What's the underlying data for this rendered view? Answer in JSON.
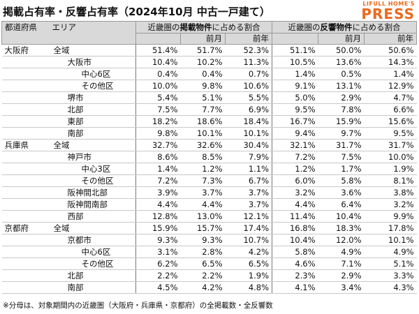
{
  "header": {
    "title": "掲載占有率・反響占有率（2024年10月 中古一戸建て）",
    "logo_top": "LIFULL HOME'S",
    "logo_main": "PRESS"
  },
  "table": {
    "columns": {
      "prefecture": "都道府県",
      "area": "エリア",
      "group1": {
        "pre": "近畿圏の",
        "bold": "掲載物件",
        "post": "に占める割合"
      },
      "group2": {
        "pre": "近畿圏の",
        "bold": "反響物件",
        "post": "に占める割合"
      },
      "sub": [
        "前月",
        "前年",
        "前月",
        "前年"
      ]
    },
    "groups": [
      {
        "prefecture": "大阪府",
        "total": {
          "area": "全域",
          "values": [
            "51.4%",
            "51.7%",
            "52.3%",
            "51.1%",
            "50.0%",
            "50.6%"
          ]
        },
        "rows": [
          {
            "area": "大阪市",
            "values": [
              "10.4%",
              "10.2%",
              "11.3%",
              "10.5%",
              "13.6%",
              "14.3%"
            ],
            "sub": [
              {
                "area": "中心6区",
                "values": [
                  "0.4%",
                  "0.4%",
                  "0.7%",
                  "1.4%",
                  "0.5%",
                  "1.4%"
                ]
              },
              {
                "area": "その他区",
                "values": [
                  "10.0%",
                  "9.8%",
                  "10.6%",
                  "9.1%",
                  "13.1%",
                  "12.9%"
                ]
              }
            ]
          },
          {
            "area": "堺市",
            "values": [
              "5.4%",
              "5.1%",
              "5.5%",
              "5.0%",
              "2.9%",
              "4.7%"
            ]
          },
          {
            "area": "北部",
            "values": [
              "7.5%",
              "7.7%",
              "6.9%",
              "9.5%",
              "7.8%",
              "6.6%"
            ]
          },
          {
            "area": "東部",
            "values": [
              "18.2%",
              "18.6%",
              "18.4%",
              "16.7%",
              "15.9%",
              "15.6%"
            ]
          },
          {
            "area": "南部",
            "values": [
              "9.8%",
              "10.1%",
              "10.1%",
              "9.4%",
              "9.7%",
              "9.5%"
            ]
          }
        ]
      },
      {
        "prefecture": "兵庫県",
        "total": {
          "area": "全域",
          "values": [
            "32.7%",
            "32.6%",
            "30.4%",
            "32.1%",
            "31.7%",
            "31.7%"
          ]
        },
        "rows": [
          {
            "area": "神戸市",
            "values": [
              "8.6%",
              "8.5%",
              "7.9%",
              "7.2%",
              "7.5%",
              "10.0%"
            ],
            "sub": [
              {
                "area": "中心3区",
                "values": [
                  "1.4%",
                  "1.2%",
                  "1.1%",
                  "1.2%",
                  "1.7%",
                  "1.9%"
                ]
              },
              {
                "area": "その他区",
                "values": [
                  "7.2%",
                  "7.3%",
                  "6.7%",
                  "6.0%",
                  "5.8%",
                  "8.1%"
                ]
              }
            ]
          },
          {
            "area": "阪神間北部",
            "values": [
              "3.9%",
              "3.7%",
              "3.7%",
              "3.2%",
              "3.6%",
              "3.8%"
            ]
          },
          {
            "area": "阪神間南部",
            "values": [
              "4.4%",
              "4.4%",
              "3.7%",
              "4.4%",
              "6.4%",
              "3.2%"
            ]
          },
          {
            "area": "西部",
            "values": [
              "12.8%",
              "13.0%",
              "12.1%",
              "11.4%",
              "10.4%",
              "9.9%"
            ]
          }
        ]
      },
      {
        "prefecture": "京都府",
        "total": {
          "area": "全域",
          "values": [
            "15.9%",
            "15.7%",
            "17.4%",
            "16.8%",
            "18.3%",
            "17.8%"
          ]
        },
        "rows": [
          {
            "area": "京都市",
            "values": [
              "9.3%",
              "9.3%",
              "10.7%",
              "10.4%",
              "12.0%",
              "10.1%"
            ],
            "sub": [
              {
                "area": "中心6区",
                "values": [
                  "3.1%",
                  "2.8%",
                  "4.2%",
                  "5.8%",
                  "4.9%",
                  "4.9%"
                ]
              },
              {
                "area": "その他区",
                "values": [
                  "6.2%",
                  "6.5%",
                  "6.5%",
                  "4.6%",
                  "7.1%",
                  "5.1%"
                ]
              }
            ]
          },
          {
            "area": "北部",
            "values": [
              "2.2%",
              "2.2%",
              "1.9%",
              "2.3%",
              "2.9%",
              "3.3%"
            ]
          },
          {
            "area": "南部",
            "values": [
              "4.5%",
              "4.2%",
              "4.8%",
              "4.1%",
              "3.4%",
              "4.3%"
            ]
          }
        ]
      }
    ]
  },
  "footnote": "※分母は、対象期間内の近畿圏（大阪府・兵庫県・京都府）の全掲載数・全反響数"
}
